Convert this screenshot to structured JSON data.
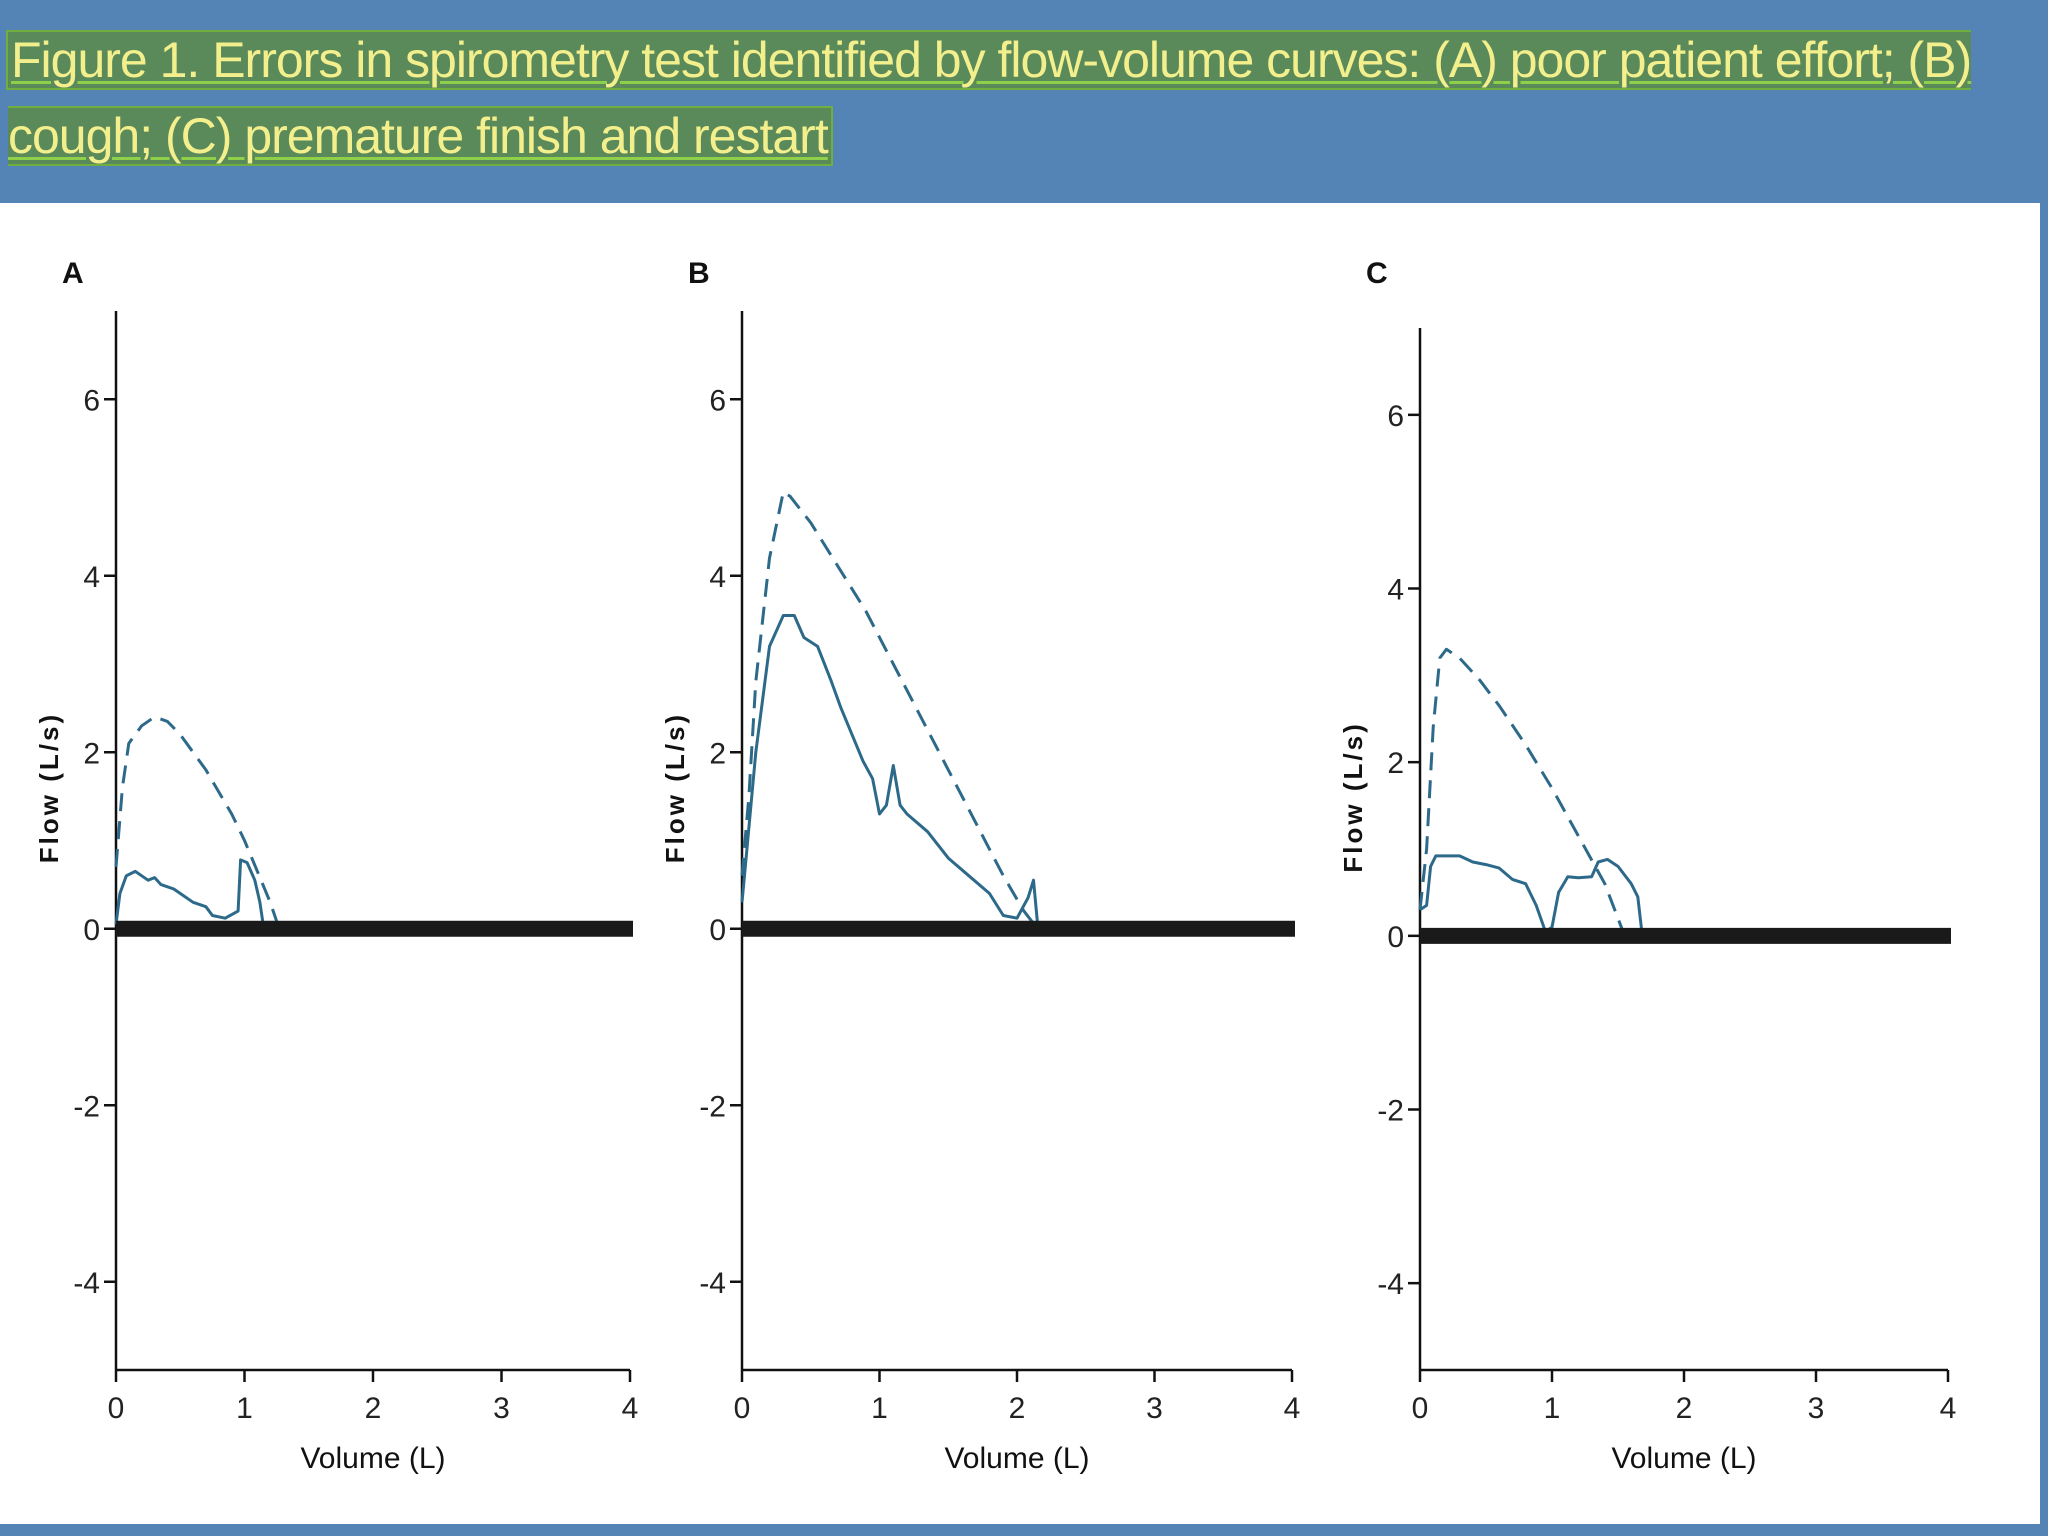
{
  "figure": {
    "title": "Figure 1.  Errors in spirometry test identified by flow-volume curves: (A) poor patient effort; (B) cough; (C) premature finish and restart"
  },
  "colors": {
    "header_background": "#5484b5",
    "title_text": "#f3ef8d",
    "curve": "#2d6a8a",
    "baseline": "#1a1a1a"
  },
  "chart_data": [
    {
      "type": "line",
      "panel_label": "A",
      "xlabel": "Volume (L)",
      "ylabel": "Flow (L/s)",
      "xlim": [
        0,
        4
      ],
      "ylim": [
        -5,
        7
      ],
      "x_ticks": [
        0,
        1,
        2,
        3,
        4
      ],
      "y_ticks": [
        -4,
        -2,
        0,
        2,
        4,
        6
      ],
      "series": [
        {
          "style": "dashed",
          "points": [
            [
              0,
              0.7
            ],
            [
              0.05,
              1.6
            ],
            [
              0.1,
              2.1
            ],
            [
              0.2,
              2.3
            ],
            [
              0.3,
              2.4
            ],
            [
              0.4,
              2.35
            ],
            [
              0.5,
              2.2
            ],
            [
              0.6,
              2.0
            ],
            [
              0.7,
              1.8
            ],
            [
              0.8,
              1.55
            ],
            [
              0.9,
              1.3
            ],
            [
              1.0,
              1.0
            ],
            [
              1.1,
              0.65
            ],
            [
              1.2,
              0.3
            ],
            [
              1.27,
              0.0
            ]
          ]
        },
        {
          "style": "solid",
          "points": [
            [
              0,
              0.05
            ],
            [
              0.03,
              0.4
            ],
            [
              0.08,
              0.6
            ],
            [
              0.15,
              0.65
            ],
            [
              0.2,
              0.6
            ],
            [
              0.25,
              0.55
            ],
            [
              0.3,
              0.58
            ],
            [
              0.35,
              0.5
            ],
            [
              0.45,
              0.45
            ],
            [
              0.5,
              0.4
            ],
            [
              0.6,
              0.3
            ],
            [
              0.7,
              0.25
            ],
            [
              0.75,
              0.15
            ],
            [
              0.85,
              0.12
            ],
            [
              0.95,
              0.2
            ],
            [
              0.97,
              0.78
            ],
            [
              1.02,
              0.75
            ],
            [
              1.08,
              0.55
            ],
            [
              1.12,
              0.3
            ],
            [
              1.15,
              0.0
            ]
          ]
        }
      ]
    },
    {
      "type": "line",
      "panel_label": "B",
      "xlabel": "Volume (L)",
      "ylabel": "Flow (L/s)",
      "xlim": [
        0,
        4
      ],
      "ylim": [
        -5,
        7
      ],
      "x_ticks": [
        0,
        1,
        2,
        3,
        4
      ],
      "y_ticks": [
        -4,
        -2,
        0,
        2,
        4,
        6
      ],
      "series": [
        {
          "style": "dashed",
          "points": [
            [
              0,
              0.6
            ],
            [
              0.05,
              1.5
            ],
            [
              0.1,
              2.8
            ],
            [
              0.2,
              4.2
            ],
            [
              0.3,
              4.95
            ],
            [
              0.35,
              4.9
            ],
            [
              0.5,
              4.6
            ],
            [
              0.7,
              4.1
            ],
            [
              0.9,
              3.6
            ],
            [
              1.1,
              3.0
            ],
            [
              1.3,
              2.4
            ],
            [
              1.5,
              1.8
            ],
            [
              1.7,
              1.2
            ],
            [
              1.9,
              0.6
            ],
            [
              2.05,
              0.2
            ],
            [
              2.15,
              0.0
            ]
          ]
        },
        {
          "style": "solid",
          "points": [
            [
              0,
              0.3
            ],
            [
              0.03,
              0.8
            ],
            [
              0.1,
              2.0
            ],
            [
              0.2,
              3.2
            ],
            [
              0.3,
              3.55
            ],
            [
              0.38,
              3.55
            ],
            [
              0.45,
              3.3
            ],
            [
              0.55,
              3.2
            ],
            [
              0.65,
              2.8
            ],
            [
              0.72,
              2.5
            ],
            [
              0.8,
              2.2
            ],
            [
              0.88,
              1.9
            ],
            [
              0.95,
              1.7
            ],
            [
              1.0,
              1.3
            ],
            [
              1.05,
              1.4
            ],
            [
              1.1,
              1.85
            ],
            [
              1.15,
              1.4
            ],
            [
              1.2,
              1.3
            ],
            [
              1.35,
              1.1
            ],
            [
              1.5,
              0.8
            ],
            [
              1.65,
              0.6
            ],
            [
              1.8,
              0.4
            ],
            [
              1.9,
              0.15
            ],
            [
              2.0,
              0.12
            ],
            [
              2.08,
              0.35
            ],
            [
              2.12,
              0.55
            ],
            [
              2.15,
              0.05
            ]
          ]
        }
      ]
    },
    {
      "type": "line",
      "panel_label": "C",
      "xlabel": "Volume (L)",
      "ylabel": "Flow (L/s)",
      "xlim": [
        0,
        4
      ],
      "ylim": [
        -5,
        7
      ],
      "x_ticks": [
        0,
        1,
        2,
        3,
        4
      ],
      "y_ticks": [
        -4,
        -2,
        0,
        2,
        4,
        6
      ],
      "series": [
        {
          "style": "dashed",
          "points": [
            [
              0,
              0.3
            ],
            [
              0.05,
              1.0
            ],
            [
              0.1,
              2.4
            ],
            [
              0.15,
              3.2
            ],
            [
              0.2,
              3.3
            ],
            [
              0.3,
              3.2
            ],
            [
              0.45,
              2.95
            ],
            [
              0.6,
              2.65
            ],
            [
              0.8,
              2.2
            ],
            [
              1.0,
              1.7
            ],
            [
              1.2,
              1.15
            ],
            [
              1.4,
              0.6
            ],
            [
              1.55,
              0.0
            ]
          ]
        },
        {
          "style": "solid",
          "points": [
            [
              0,
              0.3
            ],
            [
              0.05,
              0.35
            ],
            [
              0.08,
              0.8
            ],
            [
              0.12,
              0.92
            ],
            [
              0.3,
              0.92
            ],
            [
              0.4,
              0.85
            ],
            [
              0.5,
              0.82
            ],
            [
              0.6,
              0.78
            ],
            [
              0.7,
              0.65
            ],
            [
              0.8,
              0.6
            ],
            [
              0.88,
              0.35
            ],
            [
              0.95,
              0.05
            ],
            [
              1.0,
              0.1
            ],
            [
              1.05,
              0.5
            ],
            [
              1.12,
              0.68
            ],
            [
              1.2,
              0.67
            ],
            [
              1.3,
              0.68
            ],
            [
              1.35,
              0.85
            ],
            [
              1.42,
              0.88
            ],
            [
              1.5,
              0.8
            ],
            [
              1.6,
              0.6
            ],
            [
              1.65,
              0.45
            ],
            [
              1.68,
              0.05
            ]
          ]
        }
      ]
    }
  ]
}
